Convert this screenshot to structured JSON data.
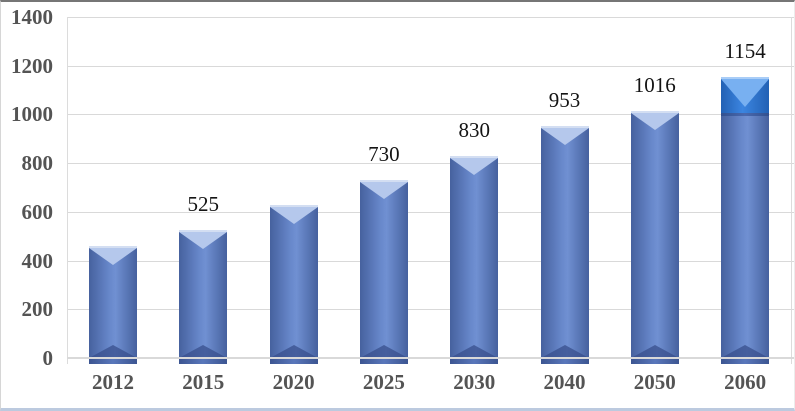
{
  "chart_data": {
    "type": "bar",
    "categories": [
      "2012",
      "2015",
      "2020",
      "2025",
      "2030",
      "2040",
      "2050",
      "2060"
    ],
    "values": [
      460,
      525,
      630,
      730,
      830,
      953,
      1016,
      1154
    ],
    "data_labels": [
      "",
      "525",
      "",
      "730",
      "830",
      "953",
      "1016",
      "1154"
    ],
    "title": "",
    "xlabel": "",
    "ylabel": "",
    "ylim": [
      0,
      1400
    ],
    "ytick_interval": 200,
    "ytick_labels": [
      "0",
      "200",
      "400",
      "600",
      "800",
      "1000",
      "1200",
      "1400"
    ],
    "grid": "horizontal",
    "legend_position": "none",
    "highlight_segment": {
      "category": "2060",
      "from_value": 1005,
      "to_value": 1154
    }
  },
  "colors": {
    "bar_body_mid": "#7090d2",
    "bar_body_edge": "#46619e",
    "bar_bevel_light": "#b5c8ec",
    "bar_bottom_shadow": "#384f8c",
    "highlight_body": "#3c85e0",
    "highlight_bevel_light": "#78b0f1",
    "gridline": "#d9d9d9",
    "axis_label_color": "#545454",
    "data_label_color": "#141414",
    "frame_top": "#767676",
    "frame_bottom": "#bccadf"
  }
}
